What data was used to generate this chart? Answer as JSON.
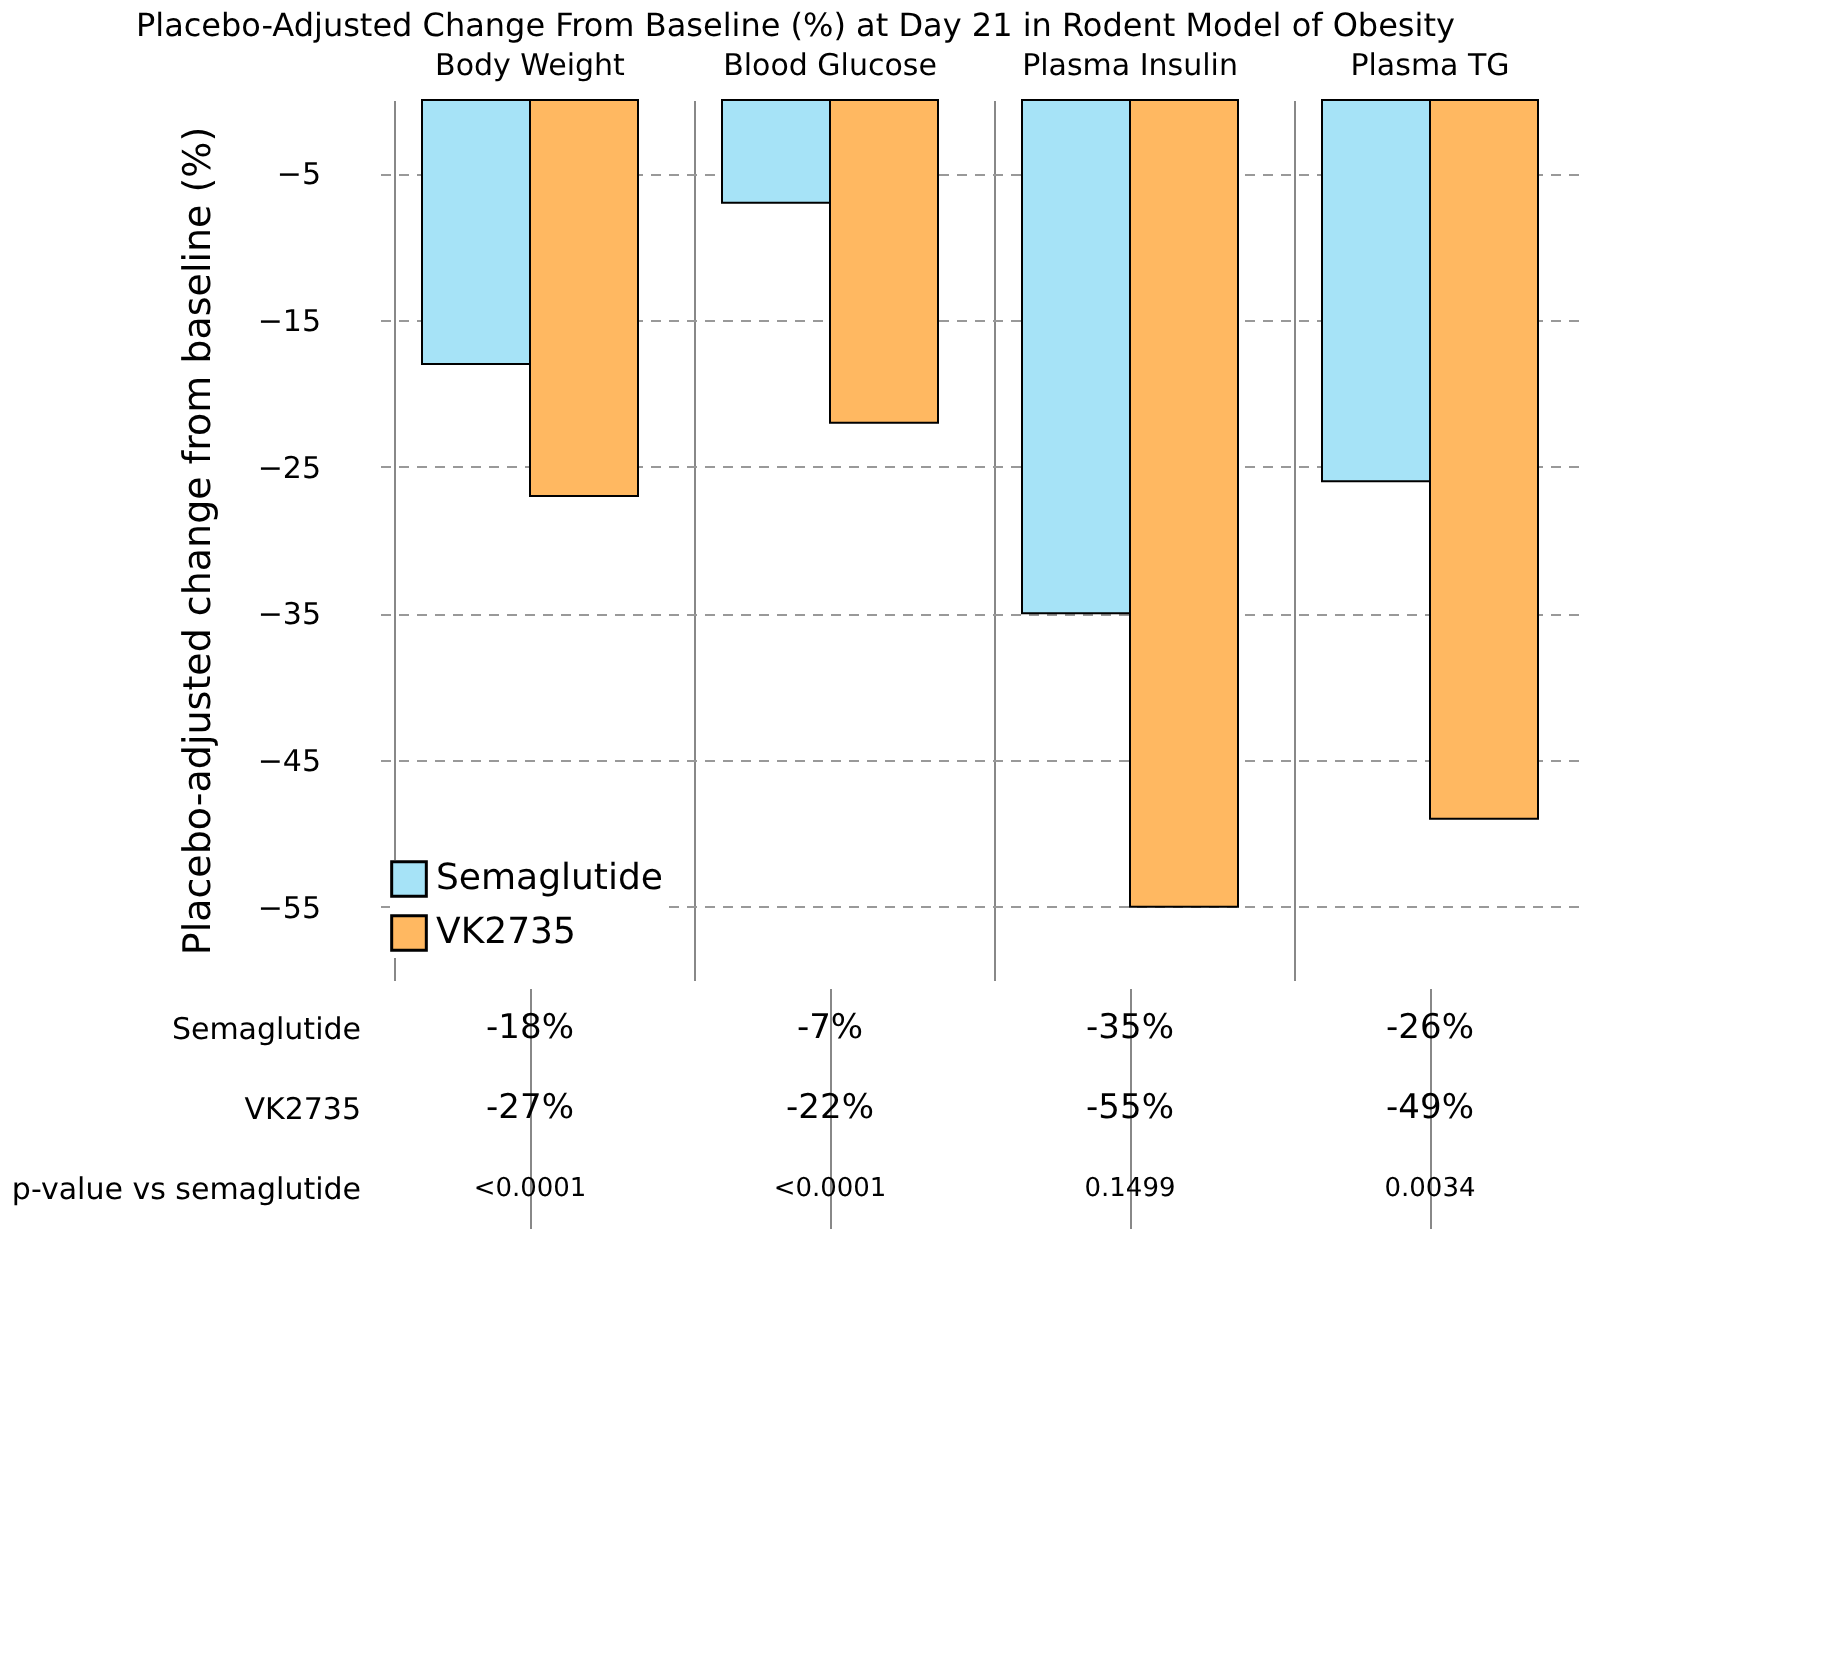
{
  "chart_data": {
    "type": "bar",
    "title": "Placebo-Adjusted Change From Baseline (%) at Day 21 in Rodent Model of Obesity",
    "ylabel": "Placebo-adjusted change from baseline (%)",
    "categories": [
      "Body Weight",
      "Blood Glucose",
      "Plasma Insulin",
      "Plasma TG"
    ],
    "series": [
      {
        "name": "Semaglutide",
        "color": "#a6e3f7",
        "values": [
          -18,
          -7,
          -35,
          -26
        ],
        "value_labels": [
          "-18%",
          "-7%",
          "-35%",
          "-26%"
        ]
      },
      {
        "name": "VK2735",
        "color": "#ffb861",
        "values": [
          -27,
          -22,
          -55,
          -49
        ],
        "value_labels": [
          "-27%",
          "-22%",
          "-55%",
          "-49%"
        ]
      }
    ],
    "ylim": [
      -60,
      0
    ],
    "yticks": [
      -5,
      -15,
      -25,
      -35,
      -45,
      -55
    ],
    "grid": true,
    "legend": "bottom left",
    "annotations": [
      "p-value vs semaglutide",
      "<0.0001",
      "<0.0001",
      "0.1499",
      "0.0034"
    ]
  }
}
